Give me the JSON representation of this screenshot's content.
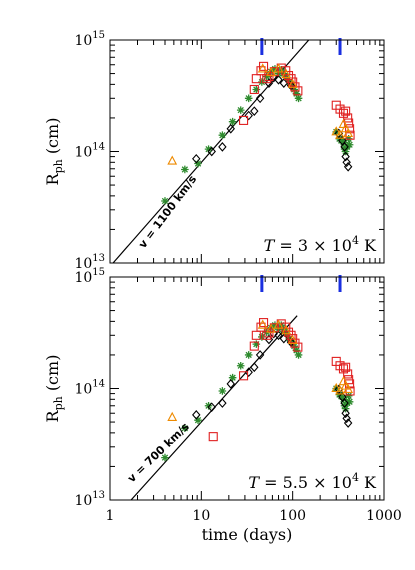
{
  "chart_data": [
    {
      "type": "scatter",
      "x_scale": "log",
      "y_scale": "log",
      "xlim": [
        1,
        1000
      ],
      "ylim": [
        10000000000000.0,
        1000000000000000.0
      ],
      "xlabel": "",
      "ylabel": "R_ph (cm)",
      "ylabel_main": "R",
      "ylabel_sub": "ph",
      "ylabel_unit": " (cm)",
      "y_ticks": [
        {
          "value": 10000000000000.0,
          "label_base": "10",
          "label_exp": "13"
        },
        {
          "value": 100000000000000.0,
          "label_base": "10",
          "label_exp": "14"
        },
        {
          "value": 1000000000000000.0,
          "label_base": "10",
          "label_exp": "15"
        }
      ],
      "annotation": "v = 1100 km/s",
      "temperature_prefix": "T = 3 × 10",
      "temperature_exp": "4",
      "temperature_unit": " K",
      "fit_line": {
        "v_kms": 1100,
        "t0_days": 1,
        "points": [
          [
            1.08,
            10000000000000.0
          ],
          [
            150,
            1000000000000000.0
          ]
        ]
      },
      "vertical_markers_days": [
        46,
        330
      ],
      "grid": false,
      "series": [
        {
          "marker": "asterisk",
          "color": "#2e8b2e",
          "points": [
            [
              4.0,
              36000000000000.0
            ],
            [
              6.6,
              69000000000000.0
            ],
            [
              9.2,
              78000000000000.0
            ],
            [
              12,
              105000000000000.0
            ],
            [
              17,
              140000000000000.0
            ],
            [
              22,
              185000000000000.0
            ],
            [
              27,
              235000000000000.0
            ],
            [
              33,
              300000000000000.0
            ],
            [
              40,
              360000000000000.0
            ],
            [
              46,
              420000000000000.0
            ],
            [
              52,
              470000000000000.0
            ],
            [
              58,
              520000000000000.0
            ],
            [
              64,
              550000000000000.0
            ],
            [
              70,
              500000000000000.0
            ],
            [
              75,
              540000000000000.0
            ],
            [
              80,
              500000000000000.0
            ],
            [
              86,
              460000000000000.0
            ],
            [
              92,
              420000000000000.0
            ],
            [
              98,
              390000000000000.0
            ],
            [
              104,
              360000000000000.0
            ],
            [
              110,
              330000000000000.0
            ],
            [
              116,
              300000000000000.0
            ],
            [
              300,
              150000000000000.0
            ],
            [
              325,
              130000000000000.0
            ],
            [
              340,
              125000000000000.0
            ],
            [
              360,
              120000000000000.0
            ],
            [
              370,
              105000000000000.0
            ],
            [
              380,
              100000000000000.0
            ],
            [
              395,
              110000000000000.0
            ],
            [
              410,
              130000000000000.0
            ],
            [
              420,
              115000000000000.0
            ]
          ]
        },
        {
          "marker": "diamond",
          "color": "#000000",
          "points": [
            [
              8.8,
              86000000000000.0
            ],
            [
              13,
              100000000000000.0
            ],
            [
              17,
              110000000000000.0
            ],
            [
              21,
              160000000000000.0
            ],
            [
              33,
              210000000000000.0
            ],
            [
              38,
              230000000000000.0
            ],
            [
              44,
              300000000000000.0
            ],
            [
              55,
              410000000000000.0
            ],
            [
              62,
              460000000000000.0
            ],
            [
              70,
              440000000000000.0
            ],
            [
              80,
              410000000000000.0
            ],
            [
              96,
              390000000000000.0
            ],
            [
              320,
              145000000000000.0
            ],
            [
              350,
              125000000000000.0
            ],
            [
              370,
              110000000000000.0
            ],
            [
              380,
              90000000000000.0
            ],
            [
              390,
              80000000000000.0
            ],
            [
              405,
              73000000000000.0
            ]
          ]
        },
        {
          "marker": "square",
          "color": "#e02020",
          "points": [
            [
              29,
              190000000000000.0
            ],
            [
              38,
              360000000000000.0
            ],
            [
              40,
              450000000000000.0
            ],
            [
              45,
              530000000000000.0
            ],
            [
              48,
              580000000000000.0
            ],
            [
              52,
              450000000000000.0
            ],
            [
              55,
              470000000000000.0
            ],
            [
              63,
              520000000000000.0
            ],
            [
              75,
              560000000000000.0
            ],
            [
              84,
              530000000000000.0
            ],
            [
              90,
              480000000000000.0
            ],
            [
              96,
              450000000000000.0
            ],
            [
              100,
              420000000000000.0
            ],
            [
              106,
              380000000000000.0
            ],
            [
              114,
              350000000000000.0
            ],
            [
              300,
              260000000000000.0
            ],
            [
              330,
              240000000000000.0
            ],
            [
              360,
              220000000000000.0
            ],
            [
              380,
              230000000000000.0
            ],
            [
              400,
              200000000000000.0
            ],
            [
              410,
              180000000000000.0
            ],
            [
              420,
              160000000000000.0
            ],
            [
              425,
              140000000000000.0
            ]
          ]
        },
        {
          "marker": "triangle",
          "color": "#ee8a00",
          "points": [
            [
              4.8,
              82000000000000.0
            ],
            [
              47,
              550000000000000.0
            ],
            [
              58,
              510000000000000.0
            ],
            [
              70,
              550000000000000.0
            ],
            [
              85,
              490000000000000.0
            ],
            [
              100,
              400000000000000.0
            ],
            [
              300,
              150000000000000.0
            ],
            [
              330,
              140000000000000.0
            ],
            [
              360,
              175000000000000.0
            ],
            [
              380,
              160000000000000.0
            ],
            [
              405,
              145000000000000.0
            ]
          ]
        }
      ]
    },
    {
      "type": "scatter",
      "x_scale": "log",
      "y_scale": "log",
      "xlim": [
        1,
        1000
      ],
      "ylim": [
        10000000000000.0,
        1000000000000000.0
      ],
      "xlabel": "time (days)",
      "ylabel": "R_ph (cm)",
      "ylabel_main": "R",
      "ylabel_sub": "ph",
      "ylabel_unit": " (cm)",
      "x_ticks": [
        {
          "value": 1,
          "label": "1"
        },
        {
          "value": 10,
          "label": "10"
        },
        {
          "value": 100,
          "label": "100"
        },
        {
          "value": 1000,
          "label": "1000"
        }
      ],
      "y_ticks": [
        {
          "value": 10000000000000.0,
          "label_base": "10",
          "label_exp": "13"
        },
        {
          "value": 100000000000000.0,
          "label_base": "10",
          "label_exp": "14"
        },
        {
          "value": 1000000000000000.0,
          "label_base": "10",
          "label_exp": "15"
        }
      ],
      "annotation": "v = 700 km/s",
      "temperature_prefix": "T = 5.5 × 10",
      "temperature_exp": "4",
      "temperature_unit": " K",
      "fit_line": {
        "v_kms": 700,
        "t0_days": 1,
        "points": [
          [
            1.7,
            10000000000000.0
          ],
          [
            112,
            450000000000000.0
          ]
        ]
      },
      "vertical_markers_days": [
        46,
        330
      ],
      "grid": false,
      "series": [
        {
          "marker": "asterisk",
          "color": "#2e8b2e",
          "points": [
            [
              4.0,
              24000000000000.0
            ],
            [
              6.6,
              44000000000000.0
            ],
            [
              9.2,
              52000000000000.0
            ],
            [
              12,
              70000000000000.0
            ],
            [
              17,
              95000000000000.0
            ],
            [
              22,
              125000000000000.0
            ],
            [
              27,
              160000000000000.0
            ],
            [
              33,
              200000000000000.0
            ],
            [
              40,
              250000000000000.0
            ],
            [
              46,
              290000000000000.0
            ],
            [
              52,
              320000000000000.0
            ],
            [
              58,
              350000000000000.0
            ],
            [
              64,
              370000000000000.0
            ],
            [
              70,
              340000000000000.0
            ],
            [
              75,
              370000000000000.0
            ],
            [
              80,
              340000000000000.0
            ],
            [
              86,
              310000000000000.0
            ],
            [
              92,
              280000000000000.0
            ],
            [
              98,
              260000000000000.0
            ],
            [
              104,
              240000000000000.0
            ],
            [
              110,
              220000000000000.0
            ],
            [
              116,
              200000000000000.0
            ],
            [
              300,
              100000000000000.0
            ],
            [
              325,
              88000000000000.0
            ],
            [
              340,
              85000000000000.0
            ],
            [
              360,
              80000000000000.0
            ],
            [
              370,
              70000000000000.0
            ],
            [
              380,
              66000000000000.0
            ],
            [
              395,
              74000000000000.0
            ],
            [
              410,
              86000000000000.0
            ],
            [
              420,
              76000000000000.0
            ]
          ]
        },
        {
          "marker": "diamond",
          "color": "#000000",
          "points": [
            [
              8.8,
              58000000000000.0
            ],
            [
              13,
              68000000000000.0
            ],
            [
              17,
              74000000000000.0
            ],
            [
              21,
              110000000000000.0
            ],
            [
              33,
              140000000000000.0
            ],
            [
              38,
              155000000000000.0
            ],
            [
              44,
              200000000000000.0
            ],
            [
              55,
              275000000000000.0
            ],
            [
              62,
              310000000000000.0
            ],
            [
              70,
              300000000000000.0
            ],
            [
              80,
              280000000000000.0
            ],
            [
              96,
              260000000000000.0
            ],
            [
              320,
              98000000000000.0
            ],
            [
              350,
              84000000000000.0
            ],
            [
              370,
              74000000000000.0
            ],
            [
              380,
              60000000000000.0
            ],
            [
              390,
              54000000000000.0
            ],
            [
              405,
              49000000000000.0
            ]
          ]
        },
        {
          "marker": "square",
          "color": "#e02020",
          "points": [
            [
              13.5,
              37000000000000.0
            ],
            [
              29,
              130000000000000.0
            ],
            [
              38,
              240000000000000.0
            ],
            [
              40,
              300000000000000.0
            ],
            [
              45,
              355000000000000.0
            ],
            [
              48,
              390000000000000.0
            ],
            [
              52,
              300000000000000.0
            ],
            [
              55,
              315000000000000.0
            ],
            [
              63,
              350000000000000.0
            ],
            [
              75,
              380000000000000.0
            ],
            [
              84,
              355000000000000.0
            ],
            [
              90,
              320000000000000.0
            ],
            [
              96,
              300000000000000.0
            ],
            [
              100,
              280000000000000.0
            ],
            [
              106,
              255000000000000.0
            ],
            [
              114,
              235000000000000.0
            ],
            [
              300,
              175000000000000.0
            ],
            [
              330,
              160000000000000.0
            ],
            [
              360,
              150000000000000.0
            ],
            [
              380,
              155000000000000.0
            ],
            [
              400,
              135000000000000.0
            ],
            [
              410,
              120000000000000.0
            ],
            [
              420,
              110000000000000.0
            ],
            [
              425,
              95000000000000.0
            ]
          ]
        },
        {
          "marker": "triangle",
          "color": "#ee8a00",
          "points": [
            [
              4.8,
              55000000000000.0
            ],
            [
              47,
              370000000000000.0
            ],
            [
              58,
              340000000000000.0
            ],
            [
              70,
              370000000000000.0
            ],
            [
              85,
              330000000000000.0
            ],
            [
              100,
              270000000000000.0
            ],
            [
              300,
              100000000000000.0
            ],
            [
              330,
              95000000000000.0
            ],
            [
              360,
              115000000000000.0
            ],
            [
              380,
              105000000000000.0
            ],
            [
              405,
              98000000000000.0
            ]
          ]
        }
      ]
    }
  ]
}
